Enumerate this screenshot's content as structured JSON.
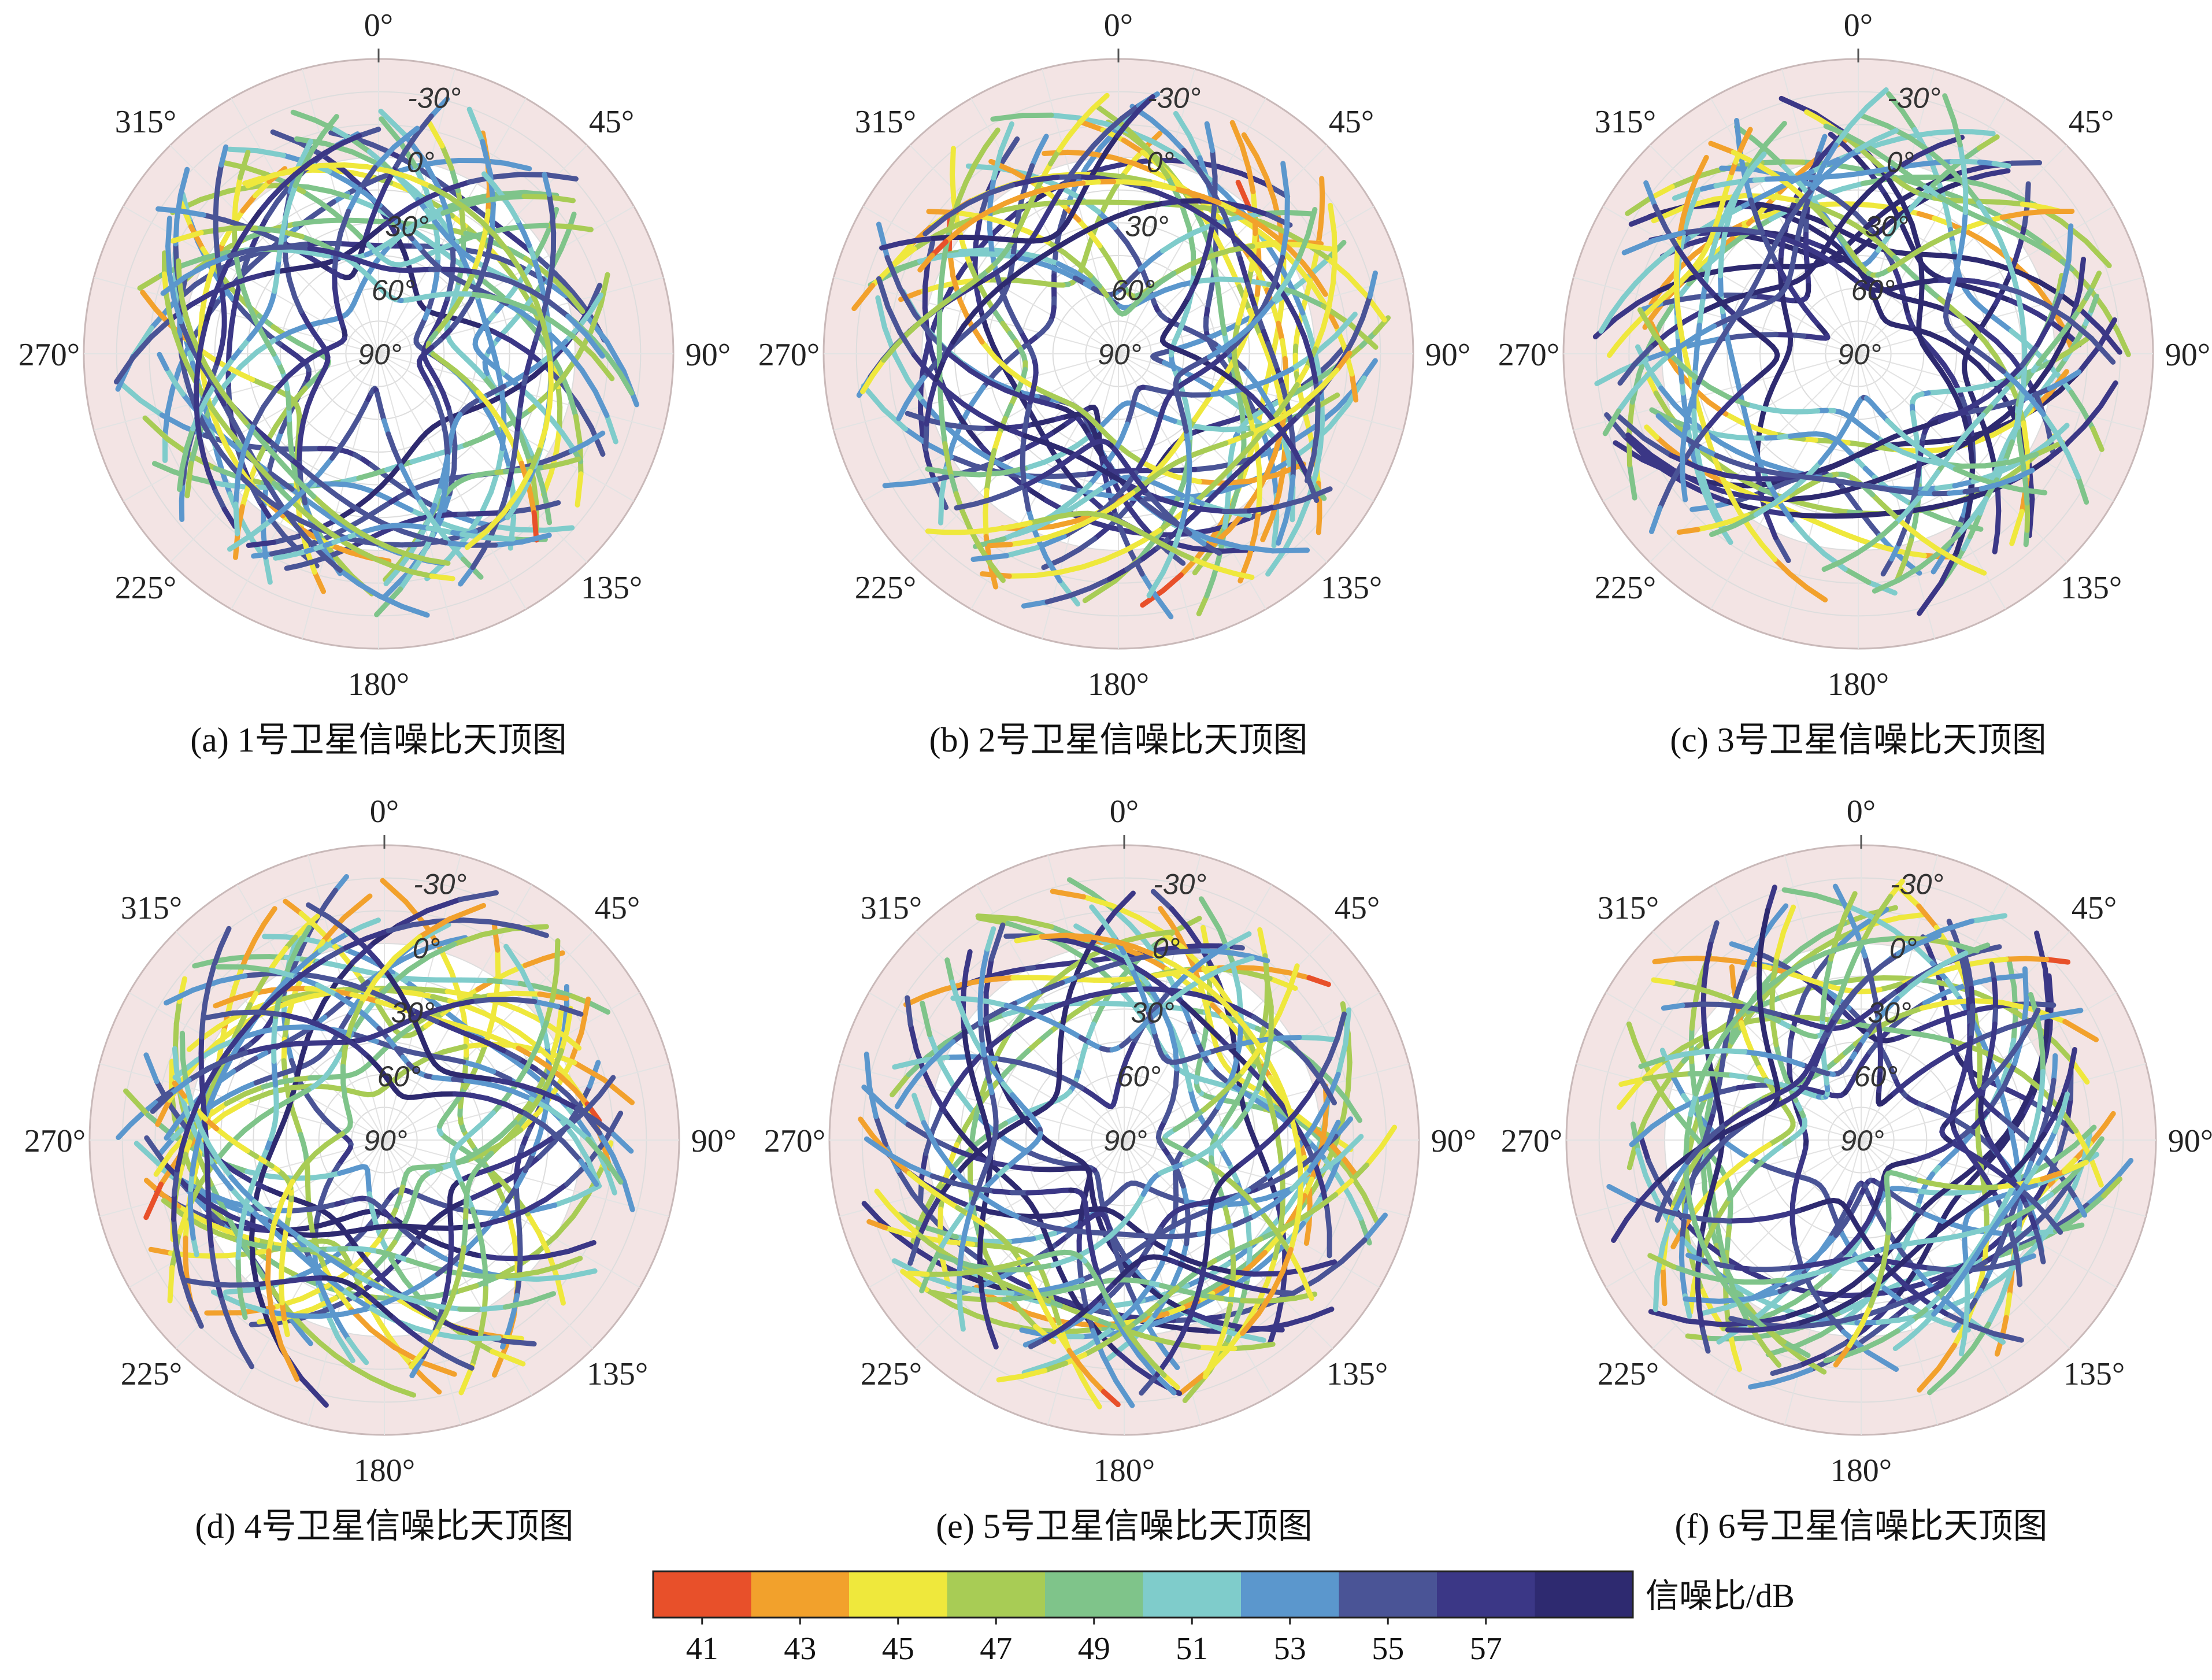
{
  "chart_data": [
    {
      "type": "polar-skyplot",
      "caption": "(a) 1号卫星信噪比天顶图",
      "seed": 11
    },
    {
      "type": "polar-skyplot",
      "caption": "(b) 2号卫星信噪比天顶图",
      "seed": 23
    },
    {
      "type": "polar-skyplot",
      "caption": "(c) 3号卫星信噪比天顶图",
      "seed": 37
    },
    {
      "type": "polar-skyplot",
      "caption": "(d) 4号卫星信噪比天顶图",
      "seed": 41
    },
    {
      "type": "polar-skyplot",
      "caption": "(e) 5号卫星信噪比天顶图",
      "seed": 53
    },
    {
      "type": "polar-skyplot",
      "caption": "(f) 6号卫星信噪比天顶图",
      "seed": 67
    }
  ],
  "polar_axes": {
    "azimuth_labels": [
      "0°",
      "45°",
      "90°",
      "135°",
      "180°",
      "225°",
      "270°",
      "315°"
    ],
    "azimuth_values": [
      0,
      45,
      90,
      135,
      180,
      225,
      270,
      315
    ],
    "elevation_labels": [
      "-30°",
      "0°",
      "30°",
      "60°",
      "90°"
    ],
    "elevation_values": [
      -30,
      0,
      30,
      60,
      90
    ],
    "elevation_range": [
      -45,
      90
    ],
    "shaded_band": "below 0° elevation",
    "shade_color": "#f3e4e4",
    "grid": true
  },
  "colorbar": {
    "label": "信噪比/dB",
    "ticks": [
      "41",
      "43",
      "45",
      "47",
      "49",
      "51",
      "53",
      "55",
      "57"
    ],
    "tick_values": [
      41,
      43,
      45,
      47,
      49,
      51,
      53,
      55,
      57
    ],
    "range": [
      40,
      60
    ],
    "colors": [
      "#e8502a",
      "#f2a12c",
      "#efe83c",
      "#a8cc55",
      "#7fc48a",
      "#7fcccb",
      "#5b97cd",
      "#4a5496",
      "#3b3786",
      "#2e2a70"
    ]
  }
}
